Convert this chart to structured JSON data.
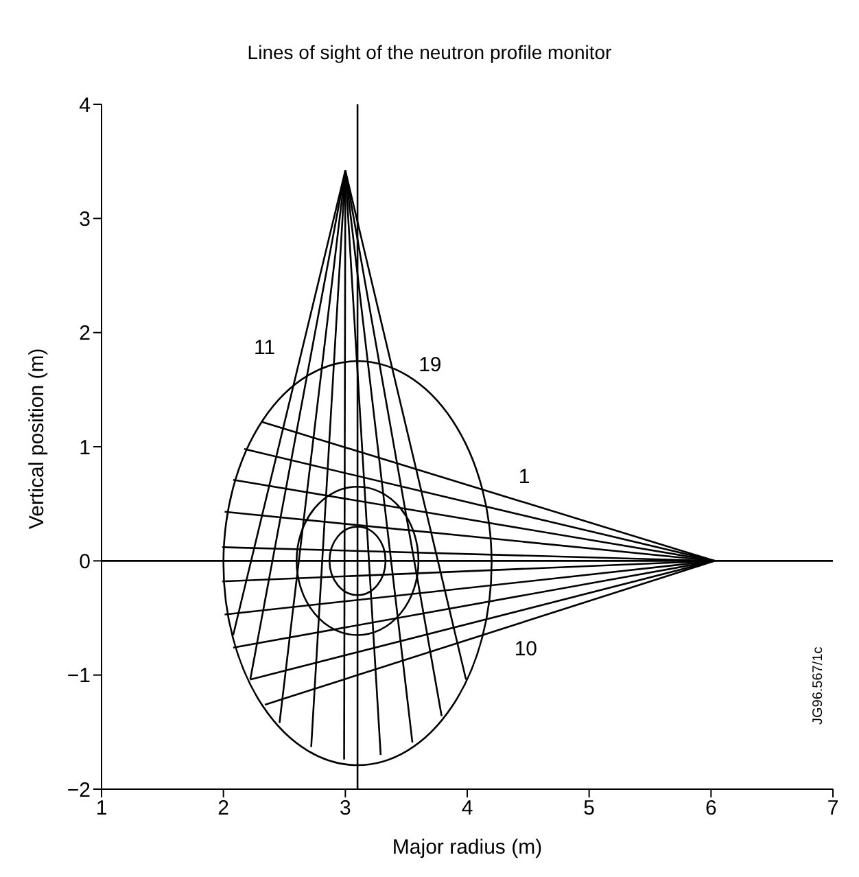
{
  "chart_data": {
    "type": "line",
    "title": "Lines of sight of the neutron profile monitor",
    "xlabel": "Major radius (m)",
    "ylabel": "Vertical position (m)",
    "xlim": [
      1,
      7
    ],
    "ylim": [
      -2,
      4
    ],
    "xticks": [
      1,
      2,
      3,
      4,
      5,
      6,
      7
    ],
    "yticks": [
      -2,
      -1,
      0,
      1,
      2,
      3,
      4
    ],
    "grid": false,
    "legend": false,
    "marker": "none",
    "line_style": "solid",
    "ref_lines": [
      {
        "axis": "x",
        "value": 3.1,
        "color": "#000000"
      },
      {
        "axis": "y",
        "value": 0,
        "color": "#000000"
      }
    ],
    "annotations": [
      "JG96.567/1c"
    ],
    "series": [
      {
        "name": "1",
        "color": "#000000",
        "x": [
          6.03,
          2.31
        ],
        "values": [
          0,
          1.22
        ]
      },
      {
        "color": "#000000",
        "x": [
          6.03,
          2.17
        ],
        "values": [
          0,
          0.98
        ]
      },
      {
        "color": "#000000",
        "x": [
          6.03,
          2.08
        ],
        "values": [
          0,
          0.71
        ]
      },
      {
        "color": "#000000",
        "x": [
          6.03,
          2.01
        ],
        "values": [
          0,
          0.43
        ]
      },
      {
        "color": "#000000",
        "x": [
          6.03,
          1.99
        ],
        "values": [
          0,
          0.12
        ]
      },
      {
        "color": "#000000",
        "x": [
          6.03,
          1.99
        ],
        "values": [
          0,
          -0.18
        ]
      },
      {
        "color": "#000000",
        "x": [
          6.03,
          2.01
        ],
        "values": [
          0,
          -0.47
        ]
      },
      {
        "color": "#000000",
        "x": [
          6.03,
          2.08
        ],
        "values": [
          0,
          -0.76
        ]
      },
      {
        "color": "#000000",
        "x": [
          6.03,
          2.22
        ],
        "values": [
          0,
          -1.04
        ]
      },
      {
        "name": "10",
        "color": "#000000",
        "x": [
          6.03,
          2.34
        ],
        "values": [
          0,
          -1.26
        ]
      },
      {
        "name": "11",
        "color": "#000000",
        "x": [
          3.0,
          2.08
        ],
        "values": [
          3.42,
          -0.65
        ]
      },
      {
        "color": "#000000",
        "x": [
          3.0,
          2.22
        ],
        "values": [
          3.42,
          -1.04
        ]
      },
      {
        "color": "#000000",
        "x": [
          3.0,
          2.46
        ],
        "values": [
          3.42,
          -1.42
        ]
      },
      {
        "color": "#000000",
        "x": [
          3.0,
          2.72
        ],
        "values": [
          3.42,
          -1.63
        ]
      },
      {
        "color": "#000000",
        "x": [
          3.0,
          2.99
        ],
        "values": [
          3.42,
          -1.74
        ]
      },
      {
        "color": "#000000",
        "x": [
          3.0,
          3.29
        ],
        "values": [
          3.42,
          -1.7
        ]
      },
      {
        "color": "#000000",
        "x": [
          3.0,
          3.55
        ],
        "values": [
          3.42,
          -1.59
        ]
      },
      {
        "color": "#000000",
        "x": [
          3.0,
          3.79
        ],
        "values": [
          3.42,
          -1.36
        ]
      },
      {
        "name": "19",
        "color": "#000000",
        "x": [
          3.0,
          3.99
        ],
        "values": [
          3.42,
          -1.04
        ]
      }
    ]
  }
}
